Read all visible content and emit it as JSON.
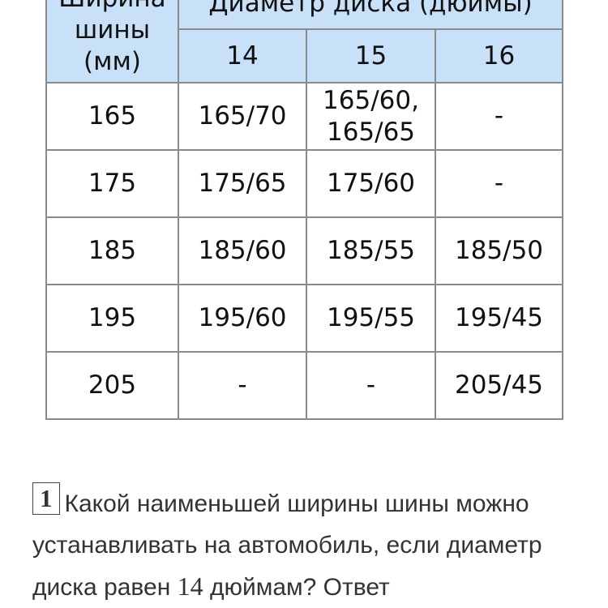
{
  "table": {
    "row_header": "Ширина шины (мм)",
    "group_header": "Диаметр диска (дюймы)",
    "columns": [
      "14",
      "15",
      "16"
    ],
    "rows": [
      {
        "width": "165",
        "cells": [
          "165/70",
          "165/60, 165/65",
          "-"
        ]
      },
      {
        "width": "175",
        "cells": [
          "175/65",
          "175/60",
          "-"
        ]
      },
      {
        "width": "185",
        "cells": [
          "185/60",
          "185/55",
          "185/50"
        ]
      },
      {
        "width": "195",
        "cells": [
          "195/60",
          "195/55",
          "195/45"
        ]
      },
      {
        "width": "205",
        "cells": [
          "-",
          "-",
          "205/45"
        ]
      }
    ],
    "header_bg": "#c9e1f8"
  },
  "question": {
    "number": "1",
    "text_before": "Какой наименьшей ширины шины можно устанавливать на автомобиль, если диаметр диска равен ",
    "value": "14",
    "text_after": " дюймам? Ответ"
  }
}
